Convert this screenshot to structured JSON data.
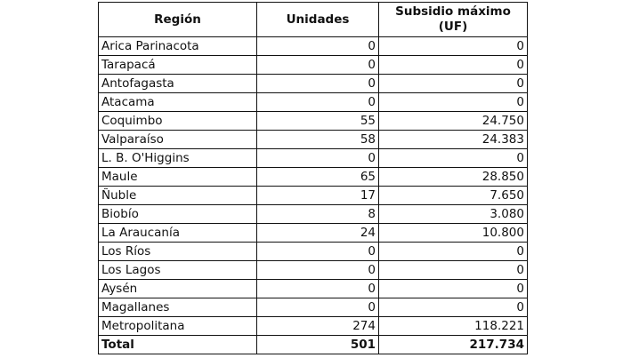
{
  "table": {
    "headers": [
      "Región",
      "Unidades",
      "Subsidio máximo (UF)"
    ],
    "rows": [
      [
        "Arica Parinacota",
        "0",
        "0"
      ],
      [
        "Tarapacá",
        "0",
        "0"
      ],
      [
        "Antofagasta",
        "0",
        "0"
      ],
      [
        "Atacama",
        "0",
        "0"
      ],
      [
        "Coquimbo",
        "55",
        "24.750"
      ],
      [
        "Valparaíso",
        "58",
        "24.383"
      ],
      [
        "L. B. O'Higgins",
        "0",
        "0"
      ],
      [
        "Maule",
        "65",
        "28.850"
      ],
      [
        "Ñuble",
        "17",
        "7.650"
      ],
      [
        "Biobío",
        "8",
        "3.080"
      ],
      [
        "La Araucanía",
        "24",
        "10.800"
      ],
      [
        "Los Ríos",
        "0",
        "0"
      ],
      [
        "Los Lagos",
        "0",
        "0"
      ],
      [
        "Aysén",
        "0",
        "0"
      ],
      [
        "Magallanes",
        "0",
        "0"
      ],
      [
        "Metropolitana",
        "274",
        "118.221"
      ]
    ],
    "total": [
      "Total",
      "501",
      "217.734"
    ]
  }
}
